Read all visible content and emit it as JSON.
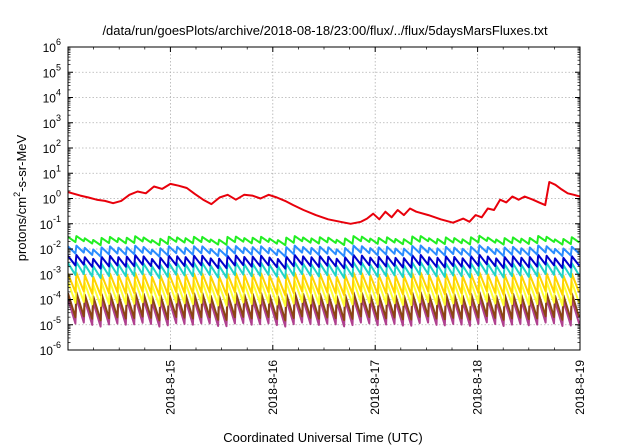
{
  "chart_data": {
    "type": "line",
    "title": "/data/run/goesPlots/archive/2018-08-18/23:00/flux/../flux/5daysMarsFluxes.txt",
    "xlabel": "Coordinated Universal Time (UTC)",
    "ylabel": {
      "pre": "protons/cm",
      "sup": "2",
      "post": "-s-sr-MeV"
    },
    "x_ticks": [
      "2018-8-15",
      "2018-8-16",
      "2018-8-17",
      "2018-8-18",
      "2018-8-19"
    ],
    "x_range": [
      "2018-8-14 00:00",
      "2018-8-19 00:00"
    ],
    "y_scale": "log",
    "y_exp_range": [
      -6,
      6
    ],
    "y_ticks": [
      {
        "base": "10",
        "exp": "-6"
      },
      {
        "base": "10",
        "exp": "-5"
      },
      {
        "base": "10",
        "exp": "-4"
      },
      {
        "base": "10",
        "exp": "-3"
      },
      {
        "base": "10",
        "exp": "-2"
      },
      {
        "base": "10",
        "exp": "-1"
      },
      {
        "base": "10",
        "exp": "0"
      },
      {
        "base": "10",
        "exp": "1"
      },
      {
        "base": "10",
        "exp": "2"
      },
      {
        "base": "10",
        "exp": "3"
      },
      {
        "base": "10",
        "exp": "4"
      },
      {
        "base": "10",
        "exp": "5"
      },
      {
        "base": "10",
        "exp": "6"
      }
    ],
    "grid": true,
    "series": [
      {
        "color": "#e8000b",
        "points": [
          [
            0.0,
            1.8
          ],
          [
            0.12,
            1.3
          ],
          [
            0.2,
            1.1
          ],
          [
            0.28,
            0.9
          ],
          [
            0.36,
            0.8
          ],
          [
            0.44,
            0.65
          ],
          [
            0.52,
            0.8
          ],
          [
            0.6,
            1.4
          ],
          [
            0.68,
            1.9
          ],
          [
            0.76,
            1.6
          ],
          [
            0.84,
            3.0
          ],
          [
            0.92,
            2.4
          ],
          [
            1.0,
            3.8
          ],
          [
            1.08,
            3.2
          ],
          [
            1.16,
            2.6
          ],
          [
            1.24,
            1.5
          ],
          [
            1.32,
            0.9
          ],
          [
            1.4,
            0.6
          ],
          [
            1.48,
            1.1
          ],
          [
            1.56,
            1.4
          ],
          [
            1.64,
            0.9
          ],
          [
            1.72,
            1.4
          ],
          [
            1.8,
            1.3
          ],
          [
            1.88,
            1.0
          ],
          [
            1.96,
            1.4
          ],
          [
            2.04,
            1.1
          ],
          [
            2.12,
            0.8
          ],
          [
            2.2,
            0.55
          ],
          [
            2.3,
            0.35
          ],
          [
            2.42,
            0.22
          ],
          [
            2.54,
            0.15
          ],
          [
            2.66,
            0.12
          ],
          [
            2.76,
            0.1
          ],
          [
            2.86,
            0.12
          ],
          [
            2.92,
            0.16
          ],
          [
            2.98,
            0.25
          ],
          [
            3.04,
            0.15
          ],
          [
            3.1,
            0.3
          ],
          [
            3.16,
            0.18
          ],
          [
            3.22,
            0.35
          ],
          [
            3.28,
            0.22
          ],
          [
            3.34,
            0.4
          ],
          [
            3.4,
            0.3
          ],
          [
            3.52,
            0.22
          ],
          [
            3.64,
            0.15
          ],
          [
            3.76,
            0.11
          ],
          [
            3.86,
            0.16
          ],
          [
            3.92,
            0.12
          ],
          [
            3.98,
            0.22
          ],
          [
            4.04,
            0.18
          ],
          [
            4.1,
            0.4
          ],
          [
            4.16,
            0.35
          ],
          [
            4.22,
            0.9
          ],
          [
            4.28,
            0.7
          ],
          [
            4.34,
            1.2
          ],
          [
            4.4,
            0.9
          ],
          [
            4.46,
            1.2
          ],
          [
            4.54,
            0.9
          ],
          [
            4.6,
            0.7
          ],
          [
            4.66,
            0.55
          ],
          [
            4.7,
            4.5
          ],
          [
            4.76,
            3.5
          ],
          [
            4.82,
            2.3
          ],
          [
            4.88,
            1.6
          ],
          [
            4.94,
            1.4
          ],
          [
            5.0,
            1.2
          ]
        ]
      },
      {
        "color": "#22ee22",
        "base": 0.022,
        "amp": 1.6,
        "saw": true
      },
      {
        "color": "#2a8cff",
        "base": 0.0085,
        "amp": 1.9,
        "saw": true
      },
      {
        "color": "#0000cc",
        "base": 0.0032,
        "amp": 2.4,
        "saw": true
      },
      {
        "color": "#21d4c8",
        "base": 0.0015,
        "amp": 3.0,
        "saw": true
      },
      {
        "color": "#ffd400",
        "base": 0.00042,
        "amp": 5.5,
        "saw": true
      },
      {
        "color": "#ffff33",
        "base": 0.00018,
        "amp": 7.0,
        "saw": true
      },
      {
        "color": "#8b4513",
        "base": 5.5e-05,
        "amp": 9.0,
        "saw": true
      },
      {
        "color": "#b0418f",
        "base": 3.2e-05,
        "amp": 9.5,
        "saw": true
      }
    ]
  }
}
